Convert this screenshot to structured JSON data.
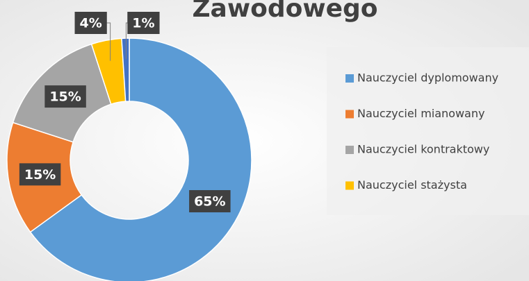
{
  "chart_data": {
    "type": "donut",
    "title": "Zawodowego",
    "categories": [
      "Nauczyciel dyplomowany",
      "Nauczyciel mianowany",
      "Nauczyciel kontraktowy",
      "Nauczyciel stażysta",
      null
    ],
    "values": [
      65,
      15,
      15,
      4,
      1
    ],
    "value_labels": [
      "65%",
      "15%",
      "15%",
      "4%",
      "1%"
    ],
    "colors": [
      "#5b9bd5",
      "#ed7d31",
      "#a5a5a5",
      "#ffc000",
      "#4472c4"
    ],
    "legend": "right"
  }
}
